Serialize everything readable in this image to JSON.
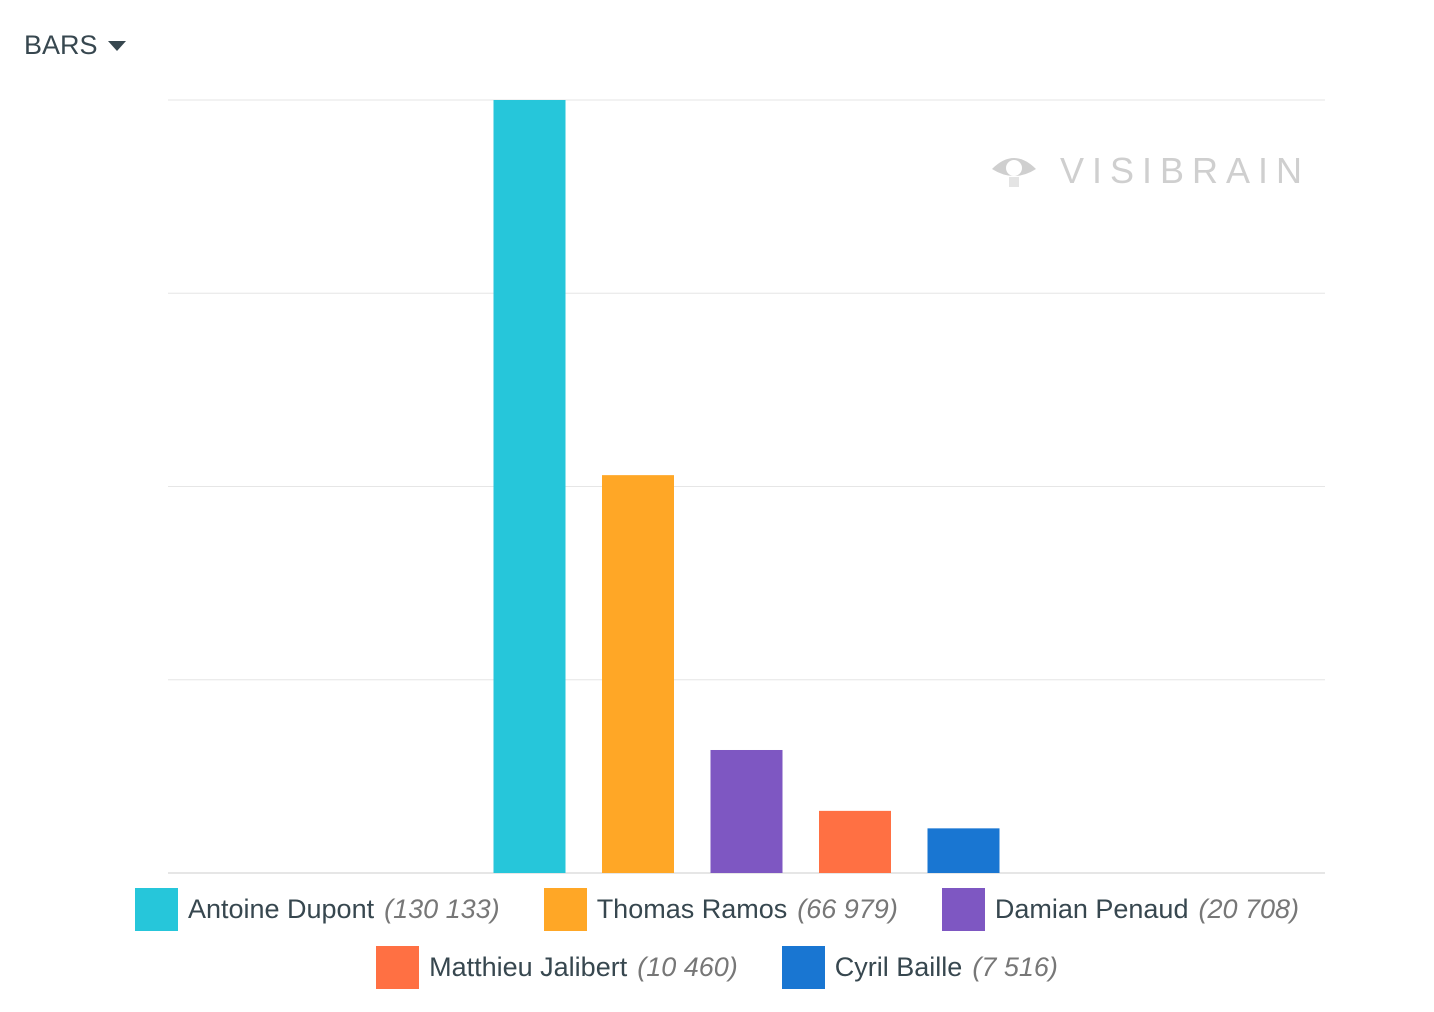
{
  "menu": {
    "label": "BARS",
    "icon": "caret-down-icon"
  },
  "watermark": "VISIBRAIN",
  "chart_data": {
    "type": "bar",
    "title": "",
    "xlabel": "",
    "ylabel": "",
    "ylim": [
      0,
      130133
    ],
    "grid": true,
    "legend_placement": "bottom",
    "categories": [
      "Antoine Dupont",
      "Thomas Ramos",
      "Damian Penaud",
      "Matthieu Jalibert",
      "Cyril Baille"
    ],
    "values": [
      130133,
      66979,
      20708,
      10460,
      7516
    ],
    "value_labels": [
      "(130 133)",
      "(66 979)",
      "(20 708)",
      "(10 460)",
      "(7 516)"
    ],
    "colors": [
      "#26c6da",
      "#ffa726",
      "#7e57c2",
      "#ff7043",
      "#1976d2"
    ]
  }
}
